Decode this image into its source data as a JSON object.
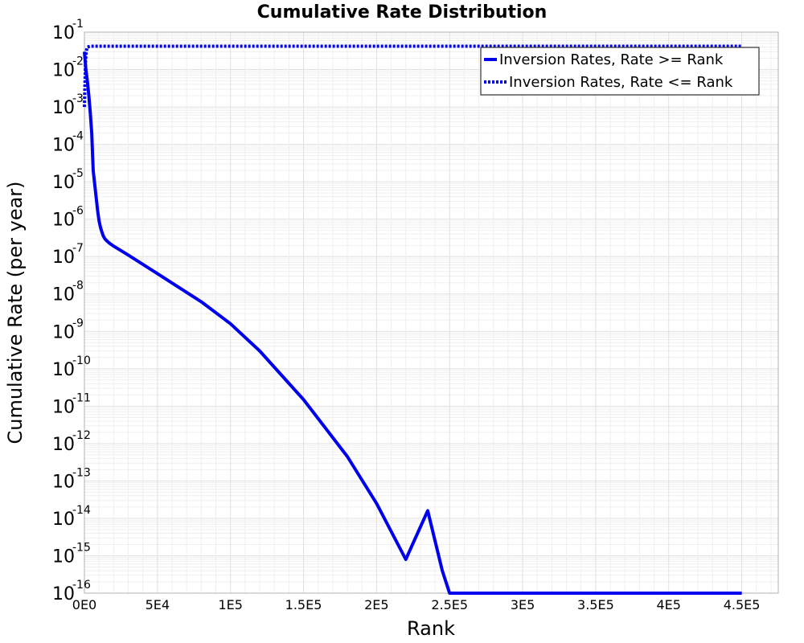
{
  "chart_data": {
    "type": "line",
    "title": "Cumulative Rate Distribution",
    "xlabel": "Rank",
    "ylabel": "Cumulative Rate (per year)",
    "xlim": [
      0,
      475000
    ],
    "ylim": [
      1e-16,
      0.1
    ],
    "y_scale": "log",
    "grid": true,
    "legend_position": "top-right",
    "x_ticks": [
      {
        "value": 0,
        "label": "0E0"
      },
      {
        "value": 50000,
        "label": "5E4"
      },
      {
        "value": 100000,
        "label": "1E5"
      },
      {
        "value": 150000,
        "label": "1.5E5"
      },
      {
        "value": 200000,
        "label": "2E5"
      },
      {
        "value": 250000,
        "label": "2.5E5"
      },
      {
        "value": 300000,
        "label": "3E5"
      },
      {
        "value": 350000,
        "label": "3.5E5"
      },
      {
        "value": 400000,
        "label": "4E5"
      },
      {
        "value": 450000,
        "label": "4.5E5"
      }
    ],
    "y_ticks": [
      {
        "exp": -1,
        "base": "10",
        "sup": "-1"
      },
      {
        "exp": -2,
        "base": "10",
        "sup": "-2"
      },
      {
        "exp": -3,
        "base": "10",
        "sup": "-3"
      },
      {
        "exp": -4,
        "base": "10",
        "sup": "-4"
      },
      {
        "exp": -5,
        "base": "10",
        "sup": "-5"
      },
      {
        "exp": -6,
        "base": "10",
        "sup": "-6"
      },
      {
        "exp": -7,
        "base": "10",
        "sup": "-7"
      },
      {
        "exp": -8,
        "base": "10",
        "sup": "-8"
      },
      {
        "exp": -9,
        "base": "10",
        "sup": "-9"
      },
      {
        "exp": -10,
        "base": "10",
        "sup": "-10"
      },
      {
        "exp": -11,
        "base": "10",
        "sup": "-11"
      },
      {
        "exp": -12,
        "base": "10",
        "sup": "-12"
      },
      {
        "exp": -13,
        "base": "10",
        "sup": "-13"
      },
      {
        "exp": -14,
        "base": "10",
        "sup": "-14"
      },
      {
        "exp": -15,
        "base": "10",
        "sup": "-15"
      },
      {
        "exp": -16,
        "base": "10",
        "sup": "-16"
      }
    ],
    "series": [
      {
        "name": "Inversion Rates, Rate >= Rank",
        "color": "#0000ee",
        "style": "solid",
        "x": [
          0,
          1000,
          2000,
          3000,
          4000,
          5000,
          6000,
          7000,
          8000,
          9000,
          10000,
          11000,
          12000,
          13000,
          14000,
          15000,
          17000,
          20000,
          30000,
          50000,
          80000,
          100000,
          120000,
          150000,
          180000,
          200000,
          220000,
          235000,
          245000,
          250000,
          300000,
          350000,
          400000,
          450000
        ],
        "y": [
          0.03,
          0.01,
          0.005,
          0.002,
          0.0007,
          0.0002,
          2e-05,
          9e-06,
          4e-06,
          1.7e-06,
          9e-07,
          6e-07,
          4.5e-07,
          3.5e-07,
          3e-07,
          2.7e-07,
          2.3e-07,
          1.9e-07,
          1.1e-07,
          3.5e-08,
          6.2e-09,
          1.6e-09,
          3e-10,
          1.5e-11,
          4.5e-13,
          2.5e-14,
          8e-16,
          1.6e-14,
          4e-16,
          1e-16,
          1e-16,
          1e-16,
          1e-16,
          1e-16
        ]
      },
      {
        "name": "Inversion Rates, Rate <= Rank",
        "color": "#0000ee",
        "style": "dotted",
        "x": [
          0,
          300,
          700,
          1200,
          2000,
          4000,
          10000,
          50000,
          100000,
          200000,
          300000,
          400000,
          450000
        ],
        "y": [
          0.001,
          0.003,
          0.015,
          0.03,
          0.04,
          0.042,
          0.042,
          0.042,
          0.042,
          0.042,
          0.042,
          0.042,
          0.042
        ]
      }
    ]
  }
}
